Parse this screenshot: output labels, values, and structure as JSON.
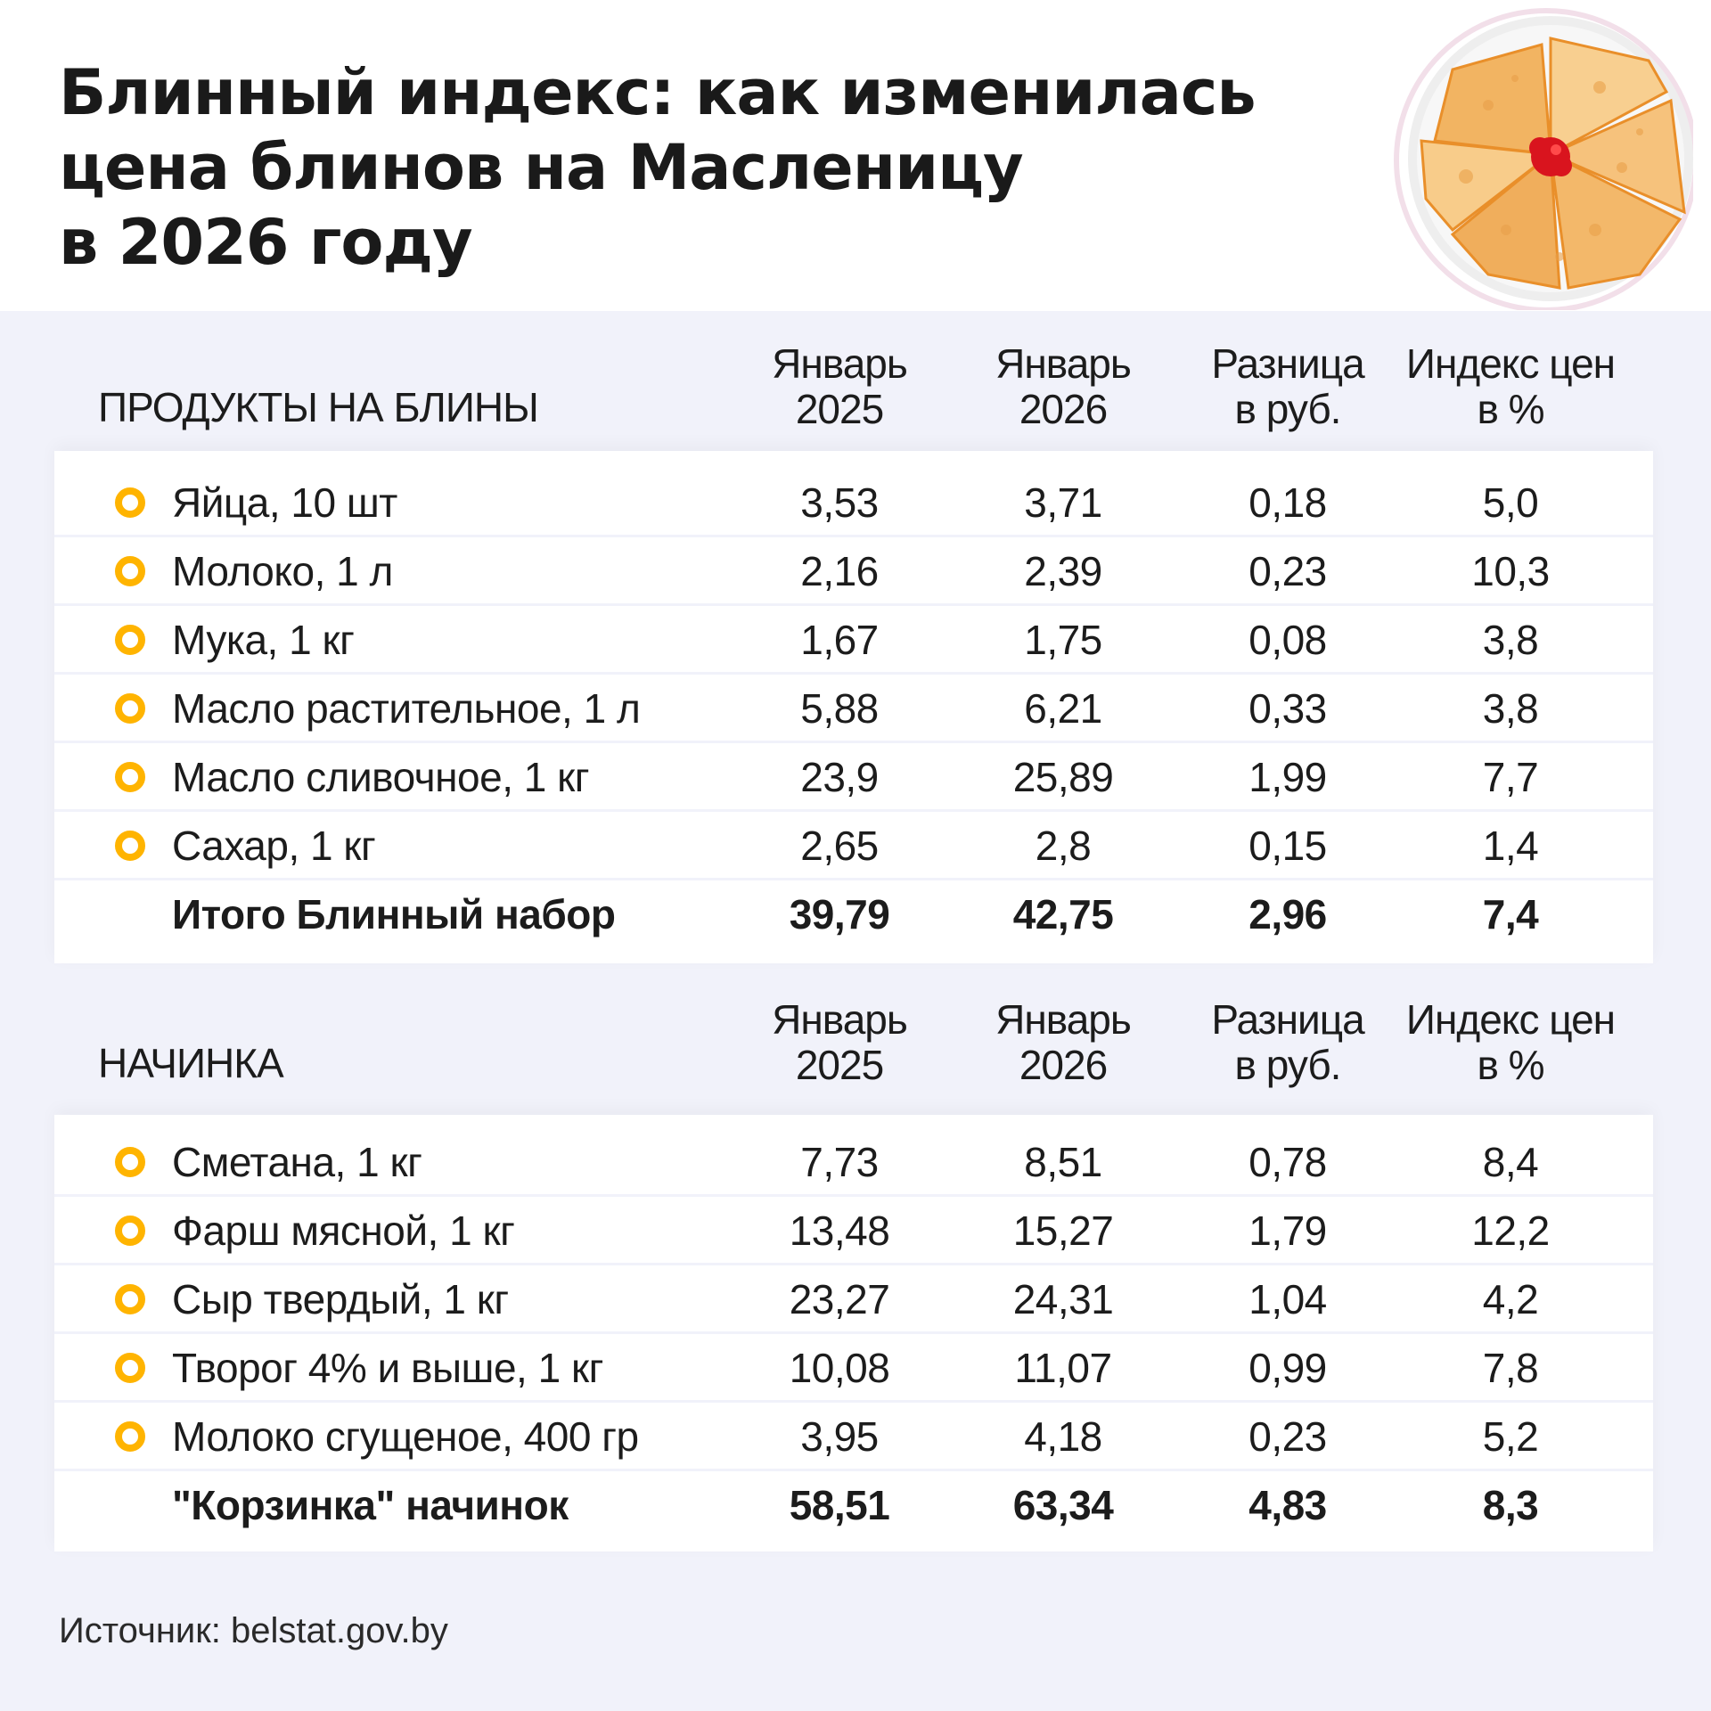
{
  "title": [
    "Блинный индекс: как изменилась",
    "цена блинов на Масленицу",
    "в 2026 году"
  ],
  "accent_color": "#ffb400",
  "columns": [
    [
      "Январь",
      "2025"
    ],
    [
      "Январь",
      "2026"
    ],
    [
      "Разница",
      "в руб."
    ],
    [
      "Индекс цен",
      "в %"
    ]
  ],
  "sections": [
    {
      "heading": "ПРОДУКТЫ НА БЛИНЫ",
      "rows": [
        [
          "Яйца, 10 шт",
          "3,53",
          "3,71",
          "0,18",
          "5,0"
        ],
        [
          "Молоко, 1 л",
          "2,16",
          "2,39",
          "0,23",
          "10,3"
        ],
        [
          "Мука, 1 кг",
          "1,67",
          "1,75",
          "0,08",
          "3,8"
        ],
        [
          "Масло растительное, 1 л",
          "5,88",
          "6,21",
          "0,33",
          "3,8"
        ],
        [
          "Масло сливочное, 1 кг",
          "23,9",
          "25,89",
          "1,99",
          "7,7"
        ],
        [
          "Сахар, 1 кг",
          "2,65",
          "2,8",
          "0,15",
          "1,4"
        ]
      ],
      "total": [
        "Итого Блинный набор",
        "39,79",
        "42,75",
        "2,96",
        "7,4"
      ]
    },
    {
      "heading": "НАЧИНКА",
      "rows": [
        [
          "Сметана, 1 кг",
          "7,73",
          "8,51",
          "0,78",
          "8,4"
        ],
        [
          "Фарш мясной, 1 кг",
          "13,48",
          "15,27",
          "1,79",
          "12,2"
        ],
        [
          "Сыр твердый, 1 кг",
          "23,27",
          "24,31",
          "1,04",
          "4,2"
        ],
        [
          "Творог 4% и выше, 1 кг",
          "10,08",
          "11,07",
          "0,99",
          "7,8"
        ],
        [
          "Молоко сгущеное, 400 гр",
          "3,95",
          "4,18",
          "0,23",
          "5,2"
        ]
      ],
      "total": [
        "\"Корзинка\" начинок",
        "58,51",
        "63,34",
        "4,83",
        "8,3"
      ]
    }
  ],
  "source": "Источник: belstat.gov.by"
}
